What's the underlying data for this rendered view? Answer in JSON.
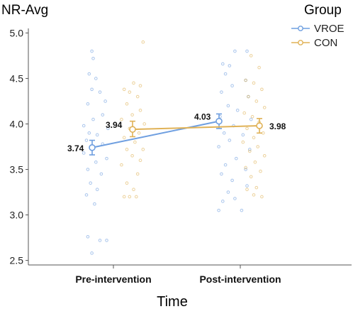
{
  "chart_data": {
    "type": "line",
    "ylabel": "NR-Avg",
    "xlabel": "Time",
    "ylim": [
      2.45,
      5.05
    ],
    "yticks": [
      2.5,
      3.0,
      3.5,
      4.0,
      4.5,
      5.0
    ],
    "ytick_labels": [
      "2.5",
      "3.0",
      "3.5",
      "4.0",
      "4.5",
      "5.0"
    ],
    "categories": [
      "Pre-intervention",
      "Post-intervention"
    ],
    "legend": {
      "title": "Group",
      "position": "top-right"
    },
    "series": [
      {
        "name": "VROE",
        "color": "#6f9fe0",
        "means": [
          3.74,
          4.03
        ],
        "mean_labels": [
          "3.74",
          "4.03"
        ],
        "error_low": [
          3.66,
          3.95
        ],
        "error_high": [
          3.82,
          4.11
        ],
        "raw_points": [
          [
            {
              "jitter": -0.16,
              "y": 4.8
            },
            {
              "jitter": -0.15,
              "y": 4.72
            },
            {
              "jitter": -0.18,
              "y": 4.55
            },
            {
              "jitter": -0.13,
              "y": 4.5
            },
            {
              "jitter": -0.16,
              "y": 4.38
            },
            {
              "jitter": -0.1,
              "y": 4.35
            },
            {
              "jitter": -0.06,
              "y": 4.25
            },
            {
              "jitter": -0.19,
              "y": 4.22
            },
            {
              "jitter": -0.08,
              "y": 4.1
            },
            {
              "jitter": -0.15,
              "y": 4.05
            },
            {
              "jitter": -0.22,
              "y": 3.98
            },
            {
              "jitter": -0.04,
              "y": 3.95
            },
            {
              "jitter": -0.18,
              "y": 3.9
            },
            {
              "jitter": -0.12,
              "y": 3.88
            },
            {
              "jitter": -0.2,
              "y": 3.82
            },
            {
              "jitter": -0.08,
              "y": 3.78
            },
            {
              "jitter": -0.16,
              "y": 3.72
            },
            {
              "jitter": -0.22,
              "y": 3.68
            },
            {
              "jitter": -0.05,
              "y": 3.62
            },
            {
              "jitter": -0.13,
              "y": 3.58
            },
            {
              "jitter": -0.19,
              "y": 3.5
            },
            {
              "jitter": -0.09,
              "y": 3.45
            },
            {
              "jitter": -0.17,
              "y": 3.35
            },
            {
              "jitter": -0.12,
              "y": 3.28
            },
            {
              "jitter": -0.2,
              "y": 3.22
            },
            {
              "jitter": -0.14,
              "y": 3.12
            },
            {
              "jitter": -0.1,
              "y": 2.72
            },
            {
              "jitter": -0.19,
              "y": 2.76
            },
            {
              "jitter": -0.05,
              "y": 2.72
            },
            {
              "jitter": -0.16,
              "y": 2.58
            }
          ],
          [
            {
              "jitter": -0.04,
              "y": 4.8
            },
            {
              "jitter": 0.05,
              "y": 4.8
            },
            {
              "jitter": -0.13,
              "y": 4.66
            },
            {
              "jitter": -0.08,
              "y": 4.64
            },
            {
              "jitter": -0.11,
              "y": 4.55
            },
            {
              "jitter": 0.04,
              "y": 4.48
            },
            {
              "jitter": -0.06,
              "y": 4.42
            },
            {
              "jitter": -0.14,
              "y": 4.35
            },
            {
              "jitter": 0.06,
              "y": 4.3
            },
            {
              "jitter": -0.09,
              "y": 4.2
            },
            {
              "jitter": -0.02,
              "y": 4.15
            },
            {
              "jitter": -0.15,
              "y": 4.08
            },
            {
              "jitter": 0.08,
              "y": 4.05
            },
            {
              "jitter": -0.05,
              "y": 3.98
            },
            {
              "jitter": -0.12,
              "y": 3.9
            },
            {
              "jitter": 0.02,
              "y": 3.88
            },
            {
              "jitter": -0.08,
              "y": 3.82
            },
            {
              "jitter": -0.16,
              "y": 3.75
            },
            {
              "jitter": 0.07,
              "y": 3.72
            },
            {
              "jitter": -0.03,
              "y": 3.62
            },
            {
              "jitter": -0.11,
              "y": 3.55
            },
            {
              "jitter": 0.04,
              "y": 3.5
            },
            {
              "jitter": -0.14,
              "y": 3.45
            },
            {
              "jitter": -0.06,
              "y": 3.38
            },
            {
              "jitter": 0.05,
              "y": 3.32
            },
            {
              "jitter": -0.09,
              "y": 3.25
            },
            {
              "jitter": -0.13,
              "y": 3.15
            },
            {
              "jitter": 0.01,
              "y": 3.05
            },
            {
              "jitter": -0.16,
              "y": 3.05
            },
            {
              "jitter": -0.04,
              "y": 3.18
            }
          ]
        ]
      },
      {
        "name": "CON",
        "color": "#e0b257",
        "means": [
          3.94,
          3.98
        ],
        "mean_labels": [
          "3.94",
          "3.98"
        ],
        "error_low": [
          3.86,
          3.9
        ],
        "error_high": [
          4.03,
          4.06
        ],
        "raw_points": [
          [
            {
              "jitter": 0.22,
              "y": 4.9
            },
            {
              "jitter": 0.15,
              "y": 4.45
            },
            {
              "jitter": 0.2,
              "y": 4.42
            },
            {
              "jitter": 0.08,
              "y": 4.38
            },
            {
              "jitter": 0.12,
              "y": 4.35
            },
            {
              "jitter": 0.18,
              "y": 4.3
            },
            {
              "jitter": 0.1,
              "y": 4.22
            },
            {
              "jitter": 0.2,
              "y": 4.15
            },
            {
              "jitter": 0.14,
              "y": 4.1
            },
            {
              "jitter": 0.06,
              "y": 4.05
            },
            {
              "jitter": 0.23,
              "y": 4.0
            },
            {
              "jitter": 0.12,
              "y": 3.95
            },
            {
              "jitter": 0.19,
              "y": 3.9
            },
            {
              "jitter": 0.08,
              "y": 3.85
            },
            {
              "jitter": 0.16,
              "y": 3.8
            },
            {
              "jitter": 0.1,
              "y": 3.72
            },
            {
              "jitter": 0.22,
              "y": 3.72
            },
            {
              "jitter": 0.14,
              "y": 3.65
            },
            {
              "jitter": 0.2,
              "y": 3.6
            },
            {
              "jitter": 0.06,
              "y": 3.55
            },
            {
              "jitter": 0.18,
              "y": 3.45
            },
            {
              "jitter": 0.1,
              "y": 3.35
            },
            {
              "jitter": 0.15,
              "y": 3.28
            },
            {
              "jitter": 0.08,
              "y": 3.2
            },
            {
              "jitter": 0.12,
              "y": 3.2
            },
            {
              "jitter": 0.17,
              "y": 3.2
            }
          ],
          [
            {
              "jitter": 0.08,
              "y": 4.75
            },
            {
              "jitter": 0.14,
              "y": 4.62
            },
            {
              "jitter": 0.04,
              "y": 4.48
            },
            {
              "jitter": 0.1,
              "y": 4.45
            },
            {
              "jitter": 0.16,
              "y": 4.38
            },
            {
              "jitter": 0.06,
              "y": 4.3
            },
            {
              "jitter": 0.12,
              "y": 4.25
            },
            {
              "jitter": 0.18,
              "y": 4.18
            },
            {
              "jitter": 0.03,
              "y": 4.12
            },
            {
              "jitter": 0.09,
              "y": 4.08
            },
            {
              "jitter": 0.14,
              "y": 4.02
            },
            {
              "jitter": 0.05,
              "y": 3.95
            },
            {
              "jitter": 0.17,
              "y": 3.9
            },
            {
              "jitter": 0.1,
              "y": 3.85
            },
            {
              "jitter": 0.02,
              "y": 3.8
            },
            {
              "jitter": 0.13,
              "y": 3.75
            },
            {
              "jitter": 0.07,
              "y": 3.7
            },
            {
              "jitter": 0.18,
              "y": 3.65
            },
            {
              "jitter": 0.11,
              "y": 3.58
            },
            {
              "jitter": 0.04,
              "y": 3.52
            },
            {
              "jitter": 0.15,
              "y": 3.48
            },
            {
              "jitter": 0.08,
              "y": 3.42
            },
            {
              "jitter": 0.12,
              "y": 3.3
            },
            {
              "jitter": 0.05,
              "y": 3.28
            },
            {
              "jitter": 0.16,
              "y": 3.2
            },
            {
              "jitter": 0.1,
              "y": 3.22
            }
          ]
        ]
      }
    ]
  }
}
